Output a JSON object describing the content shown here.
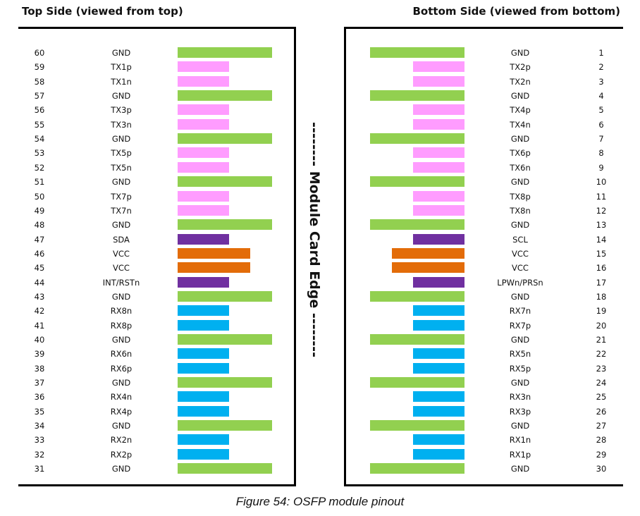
{
  "headings": {
    "top": "Top Side (viewed from top)",
    "bottom": "Bottom Side (viewed from bottom)"
  },
  "edge_label": "-------- Module Card Edge --------",
  "caption": "Figure 54: OSFP module pinout",
  "colors": {
    "gnd": "#92d050",
    "tx": "#ff9cff",
    "low_speed": "#7030a0",
    "vcc": "#e36c09",
    "rx": "#00b0f0"
  },
  "top_side": [
    {
      "pin": "60",
      "name": "GND",
      "type": "gnd"
    },
    {
      "pin": "59",
      "name": "TX1p",
      "type": "tx"
    },
    {
      "pin": "58",
      "name": "TX1n",
      "type": "tx"
    },
    {
      "pin": "57",
      "name": "GND",
      "type": "gnd"
    },
    {
      "pin": "56",
      "name": "TX3p",
      "type": "tx"
    },
    {
      "pin": "55",
      "name": "TX3n",
      "type": "tx"
    },
    {
      "pin": "54",
      "name": "GND",
      "type": "gnd"
    },
    {
      "pin": "53",
      "name": "TX5p",
      "type": "tx"
    },
    {
      "pin": "52",
      "name": "TX5n",
      "type": "tx"
    },
    {
      "pin": "51",
      "name": "GND",
      "type": "gnd"
    },
    {
      "pin": "50",
      "name": "TX7p",
      "type": "tx"
    },
    {
      "pin": "49",
      "name": "TX7n",
      "type": "tx"
    },
    {
      "pin": "48",
      "name": "GND",
      "type": "gnd"
    },
    {
      "pin": "47",
      "name": "SDA",
      "type": "low_speed"
    },
    {
      "pin": "46",
      "name": "VCC",
      "type": "vcc"
    },
    {
      "pin": "45",
      "name": "VCC",
      "type": "vcc"
    },
    {
      "pin": "44",
      "name": "INT/RSTn",
      "type": "low_speed"
    },
    {
      "pin": "43",
      "name": "GND",
      "type": "gnd"
    },
    {
      "pin": "42",
      "name": "RX8n",
      "type": "rx"
    },
    {
      "pin": "41",
      "name": "RX8p",
      "type": "rx"
    },
    {
      "pin": "40",
      "name": "GND",
      "type": "gnd"
    },
    {
      "pin": "39",
      "name": "RX6n",
      "type": "rx"
    },
    {
      "pin": "38",
      "name": "RX6p",
      "type": "rx"
    },
    {
      "pin": "37",
      "name": "GND",
      "type": "gnd"
    },
    {
      "pin": "36",
      "name": "RX4n",
      "type": "rx"
    },
    {
      "pin": "35",
      "name": "RX4p",
      "type": "rx"
    },
    {
      "pin": "34",
      "name": "GND",
      "type": "gnd"
    },
    {
      "pin": "33",
      "name": "RX2n",
      "type": "rx"
    },
    {
      "pin": "32",
      "name": "RX2p",
      "type": "rx"
    },
    {
      "pin": "31",
      "name": "GND",
      "type": "gnd"
    }
  ],
  "bottom_side": [
    {
      "pin": "1",
      "name": "GND",
      "type": "gnd"
    },
    {
      "pin": "2",
      "name": "TX2p",
      "type": "tx"
    },
    {
      "pin": "3",
      "name": "TX2n",
      "type": "tx"
    },
    {
      "pin": "4",
      "name": "GND",
      "type": "gnd"
    },
    {
      "pin": "5",
      "name": "TX4p",
      "type": "tx"
    },
    {
      "pin": "6",
      "name": "TX4n",
      "type": "tx"
    },
    {
      "pin": "7",
      "name": "GND",
      "type": "gnd"
    },
    {
      "pin": "8",
      "name": "TX6p",
      "type": "tx"
    },
    {
      "pin": "9",
      "name": "TX6n",
      "type": "tx"
    },
    {
      "pin": "10",
      "name": "GND",
      "type": "gnd"
    },
    {
      "pin": "11",
      "name": "TX8p",
      "type": "tx"
    },
    {
      "pin": "12",
      "name": "TX8n",
      "type": "tx"
    },
    {
      "pin": "13",
      "name": "GND",
      "type": "gnd"
    },
    {
      "pin": "14",
      "name": "SCL",
      "type": "low_speed"
    },
    {
      "pin": "15",
      "name": "VCC",
      "type": "vcc"
    },
    {
      "pin": "16",
      "name": "VCC",
      "type": "vcc"
    },
    {
      "pin": "17",
      "name": "LPWn/PRSn",
      "type": "low_speed"
    },
    {
      "pin": "18",
      "name": "GND",
      "type": "gnd"
    },
    {
      "pin": "19",
      "name": "RX7n",
      "type": "rx"
    },
    {
      "pin": "20",
      "name": "RX7p",
      "type": "rx"
    },
    {
      "pin": "21",
      "name": "GND",
      "type": "gnd"
    },
    {
      "pin": "22",
      "name": "RX5n",
      "type": "rx"
    },
    {
      "pin": "23",
      "name": "RX5p",
      "type": "rx"
    },
    {
      "pin": "24",
      "name": "GND",
      "type": "gnd"
    },
    {
      "pin": "25",
      "name": "RX3n",
      "type": "rx"
    },
    {
      "pin": "26",
      "name": "RX3p",
      "type": "rx"
    },
    {
      "pin": "27",
      "name": "GND",
      "type": "gnd"
    },
    {
      "pin": "28",
      "name": "RX1n",
      "type": "rx"
    },
    {
      "pin": "29",
      "name": "RX1p",
      "type": "rx"
    },
    {
      "pin": "30",
      "name": "GND",
      "type": "gnd"
    }
  ]
}
